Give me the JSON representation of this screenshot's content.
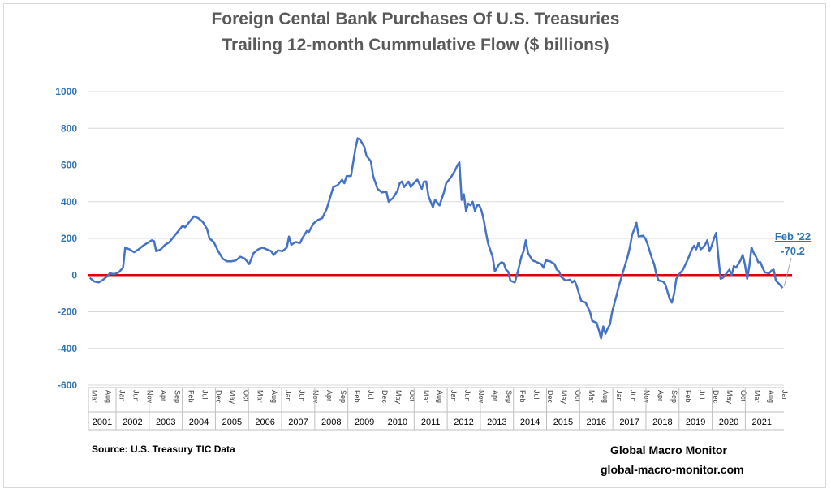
{
  "chart_data": {
    "type": "line",
    "title": "Foreign Cental Bank Purchases Of U.S. Treasuries",
    "subtitle": "Trailing 12-month Cummulative Flow ($ billions)",
    "xlabel": "",
    "ylabel": "",
    "ylim": [
      -600,
      1000
    ],
    "yticks": [
      -600,
      -400,
      -200,
      0,
      200,
      400,
      600,
      800,
      1000
    ],
    "grid": true,
    "zero_line": true,
    "years": [
      "2001",
      "2002",
      "2003",
      "2004",
      "2005",
      "2006",
      "2007",
      "2008",
      "2009",
      "2010",
      "2011",
      "2012",
      "2013",
      "2014",
      "2015",
      "2016",
      "2017",
      "2018",
      "2019",
      "2020",
      "2021"
    ],
    "month_ticks": [
      {
        "m": 0,
        "label": "Mar"
      },
      {
        "m": 5,
        "label": "Aug"
      },
      {
        "m": 10,
        "label": "Jan"
      },
      {
        "m": 15,
        "label": "Jun"
      },
      {
        "m": 20,
        "label": "Nov"
      },
      {
        "m": 25,
        "label": "Apr"
      },
      {
        "m": 30,
        "label": "Sep"
      },
      {
        "m": 35,
        "label": "Feb"
      },
      {
        "m": 40,
        "label": "Jul"
      },
      {
        "m": 45,
        "label": "Dec"
      },
      {
        "m": 50,
        "label": "May"
      },
      {
        "m": 55,
        "label": "Oct"
      },
      {
        "m": 60,
        "label": "Mar"
      },
      {
        "m": 65,
        "label": "Aug"
      },
      {
        "m": 70,
        "label": "Jan"
      },
      {
        "m": 75,
        "label": "Jun"
      },
      {
        "m": 80,
        "label": "Nov"
      },
      {
        "m": 85,
        "label": "Apr"
      },
      {
        "m": 90,
        "label": "Sep"
      },
      {
        "m": 95,
        "label": "Feb"
      },
      {
        "m": 100,
        "label": "Jul"
      },
      {
        "m": 105,
        "label": "Dec"
      },
      {
        "m": 110,
        "label": "May"
      },
      {
        "m": 115,
        "label": "Oct"
      },
      {
        "m": 120,
        "label": "Mar"
      },
      {
        "m": 125,
        "label": "Aug"
      },
      {
        "m": 130,
        "label": "Jan"
      },
      {
        "m": 135,
        "label": "Jun"
      },
      {
        "m": 140,
        "label": "Nov"
      },
      {
        "m": 145,
        "label": "Apr"
      },
      {
        "m": 150,
        "label": "Sep"
      },
      {
        "m": 155,
        "label": "Feb"
      },
      {
        "m": 160,
        "label": "Jul"
      },
      {
        "m": 165,
        "label": "Dec"
      },
      {
        "m": 170,
        "label": "May"
      },
      {
        "m": 175,
        "label": "Oct"
      },
      {
        "m": 180,
        "label": "Mar"
      },
      {
        "m": 185,
        "label": "Aug"
      },
      {
        "m": 190,
        "label": "Jan"
      },
      {
        "m": 195,
        "label": "Jun"
      },
      {
        "m": 200,
        "label": "Nov"
      },
      {
        "m": 205,
        "label": "Apr"
      },
      {
        "m": 210,
        "label": "Sep"
      },
      {
        "m": 215,
        "label": "Feb"
      },
      {
        "m": 220,
        "label": "Jul"
      },
      {
        "m": 225,
        "label": "Dec"
      },
      {
        "m": 230,
        "label": "May"
      },
      {
        "m": 235,
        "label": "Oct"
      },
      {
        "m": 240,
        "label": "Mar"
      },
      {
        "m": 245,
        "label": "Aug"
      },
      {
        "m": 250,
        "label": "Jan"
      }
    ],
    "series": [
      {
        "name": "Trailing 12-month cumulative flow",
        "color": "#4472c4",
        "points": [
          [
            0,
            -15
          ],
          [
            2,
            -35
          ],
          [
            4,
            -40
          ],
          [
            6,
            -25
          ],
          [
            8,
            -5
          ],
          [
            9,
            10
          ],
          [
            11,
            5
          ],
          [
            13,
            15
          ],
          [
            15,
            40
          ],
          [
            16,
            150
          ],
          [
            18,
            140
          ],
          [
            20,
            125
          ],
          [
            22,
            140
          ],
          [
            24,
            160
          ],
          [
            26,
            175
          ],
          [
            28,
            190
          ],
          [
            29,
            185
          ],
          [
            30,
            130
          ],
          [
            32,
            140
          ],
          [
            34,
            165
          ],
          [
            36,
            180
          ],
          [
            38,
            210
          ],
          [
            40,
            240
          ],
          [
            42,
            270
          ],
          [
            43,
            260
          ],
          [
            45,
            290
          ],
          [
            47,
            320
          ],
          [
            49,
            310
          ],
          [
            51,
            290
          ],
          [
            53,
            250
          ],
          [
            54,
            200
          ],
          [
            56,
            180
          ],
          [
            58,
            130
          ],
          [
            60,
            90
          ],
          [
            62,
            75
          ],
          [
            64,
            75
          ],
          [
            66,
            80
          ],
          [
            68,
            100
          ],
          [
            70,
            90
          ],
          [
            72,
            60
          ],
          [
            74,
            120
          ],
          [
            76,
            140
          ],
          [
            78,
            150
          ],
          [
            80,
            140
          ],
          [
            82,
            130
          ],
          [
            83,
            110
          ],
          [
            85,
            135
          ],
          [
            87,
            130
          ],
          [
            89,
            150
          ],
          [
            90,
            210
          ],
          [
            91,
            165
          ],
          [
            93,
            180
          ],
          [
            95,
            175
          ],
          [
            96,
            200
          ],
          [
            98,
            240
          ],
          [
            99,
            235
          ],
          [
            101,
            280
          ],
          [
            103,
            300
          ],
          [
            105,
            310
          ],
          [
            107,
            360
          ],
          [
            109,
            440
          ],
          [
            110,
            480
          ],
          [
            112,
            490
          ],
          [
            114,
            520
          ],
          [
            115,
            500
          ],
          [
            116,
            540
          ],
          [
            118,
            540
          ],
          [
            120,
            690
          ],
          [
            121,
            745
          ],
          [
            122,
            740
          ],
          [
            124,
            700
          ],
          [
            125,
            650
          ],
          [
            127,
            620
          ],
          [
            128,
            540
          ],
          [
            130,
            470
          ],
          [
            132,
            450
          ],
          [
            134,
            455
          ],
          [
            135,
            400
          ],
          [
            137,
            420
          ],
          [
            139,
            460
          ],
          [
            140,
            500
          ],
          [
            141,
            510
          ],
          [
            142,
            480
          ],
          [
            144,
            510
          ],
          [
            145,
            480
          ],
          [
            147,
            510
          ],
          [
            148,
            520
          ],
          [
            150,
            470
          ],
          [
            151,
            510
          ],
          [
            152,
            510
          ],
          [
            153,
            430
          ],
          [
            155,
            370
          ],
          [
            156,
            410
          ],
          [
            158,
            380
          ],
          [
            160,
            450
          ],
          [
            161,
            500
          ],
          [
            163,
            530
          ],
          [
            164,
            550
          ],
          [
            165,
            570
          ],
          [
            166,
            595
          ],
          [
            167,
            615
          ],
          [
            168,
            410
          ],
          [
            169,
            440
          ],
          [
            170,
            350
          ],
          [
            171,
            390
          ],
          [
            172,
            380
          ],
          [
            173,
            400
          ],
          [
            174,
            350
          ],
          [
            175,
            380
          ],
          [
            176,
            380
          ],
          [
            177,
            350
          ],
          [
            178,
            300
          ],
          [
            179,
            230
          ],
          [
            180,
            170
          ],
          [
            182,
            100
          ],
          [
            183,
            20
          ],
          [
            185,
            60
          ],
          [
            186,
            70
          ],
          [
            187,
            65
          ],
          [
            188,
            30
          ],
          [
            189,
            20
          ],
          [
            190,
            -30
          ],
          [
            192,
            -40
          ],
          [
            193,
            0
          ],
          [
            194,
            50
          ],
          [
            195,
            100
          ],
          [
            196,
            130
          ],
          [
            197,
            190
          ],
          [
            198,
            120
          ],
          [
            200,
            80
          ],
          [
            202,
            70
          ],
          [
            204,
            60
          ],
          [
            205,
            40
          ],
          [
            206,
            80
          ],
          [
            208,
            75
          ],
          [
            210,
            60
          ],
          [
            211,
            30
          ],
          [
            212,
            20
          ],
          [
            213,
            -10
          ],
          [
            215,
            -30
          ],
          [
            217,
            -25
          ],
          [
            218,
            -40
          ],
          [
            219,
            -30
          ],
          [
            220,
            -60
          ],
          [
            221,
            -100
          ],
          [
            222,
            -140
          ],
          [
            224,
            -150
          ],
          [
            226,
            -200
          ],
          [
            227,
            -250
          ],
          [
            229,
            -260
          ],
          [
            230,
            -300
          ],
          [
            231,
            -345
          ],
          [
            232,
            -280
          ],
          [
            233,
            -320
          ],
          [
            234,
            -290
          ],
          [
            235,
            -270
          ],
          [
            236,
            -200
          ],
          [
            238,
            -110
          ],
          [
            239,
            -60
          ],
          [
            240,
            -20
          ],
          [
            241,
            20
          ],
          [
            243,
            100
          ],
          [
            244,
            150
          ],
          [
            245,
            220
          ],
          [
            246,
            250
          ],
          [
            247,
            285
          ],
          [
            248,
            210
          ],
          [
            250,
            215
          ],
          [
            251,
            200
          ],
          [
            252,
            170
          ],
          [
            254,
            90
          ],
          [
            255,
            60
          ],
          [
            256,
            0
          ],
          [
            257,
            -30
          ],
          [
            259,
            -35
          ],
          [
            260,
            -50
          ],
          [
            262,
            -130
          ],
          [
            263,
            -150
          ],
          [
            264,
            -100
          ],
          [
            265,
            -20
          ],
          [
            266,
            0
          ],
          [
            268,
            30
          ],
          [
            270,
            80
          ],
          [
            272,
            140
          ],
          [
            273,
            160
          ],
          [
            274,
            140
          ],
          [
            275,
            175
          ],
          [
            276,
            140
          ],
          [
            277,
            150
          ],
          [
            278,
            165
          ],
          [
            279,
            190
          ],
          [
            280,
            130
          ],
          [
            281,
            160
          ],
          [
            282,
            200
          ],
          [
            283,
            230
          ],
          [
            284,
            100
          ],
          [
            285,
            -20
          ],
          [
            286,
            -15
          ],
          [
            287,
            0
          ],
          [
            289,
            30
          ],
          [
            290,
            0
          ],
          [
            291,
            50
          ],
          [
            292,
            40
          ],
          [
            294,
            80
          ],
          [
            295,
            110
          ],
          [
            296,
            60
          ],
          [
            297,
            -20
          ],
          [
            298,
            50
          ],
          [
            299,
            150
          ],
          [
            300,
            120
          ],
          [
            301,
            100
          ],
          [
            302,
            70
          ],
          [
            303,
            70
          ],
          [
            304,
            40
          ],
          [
            305,
            15
          ],
          [
            307,
            10
          ],
          [
            308,
            25
          ],
          [
            309,
            30
          ],
          [
            310,
            -30
          ],
          [
            312,
            -55
          ],
          [
            313,
            -70.2
          ]
        ]
      }
    ],
    "annotation": {
      "label": "Feb '22",
      "value_text": "-70.2",
      "point": [
        313,
        -70.2
      ]
    }
  },
  "footer": {
    "source": "Source:  U.S. Treasury TIC Data",
    "brand": "Global Macro Monitor",
    "url": "global-macro-monitor.com"
  },
  "colors": {
    "line": "#4472c4",
    "zero_line": "#e00000",
    "axis_text": "#2e75b6",
    "grid": "#d9d9d9",
    "title": "#595959"
  }
}
